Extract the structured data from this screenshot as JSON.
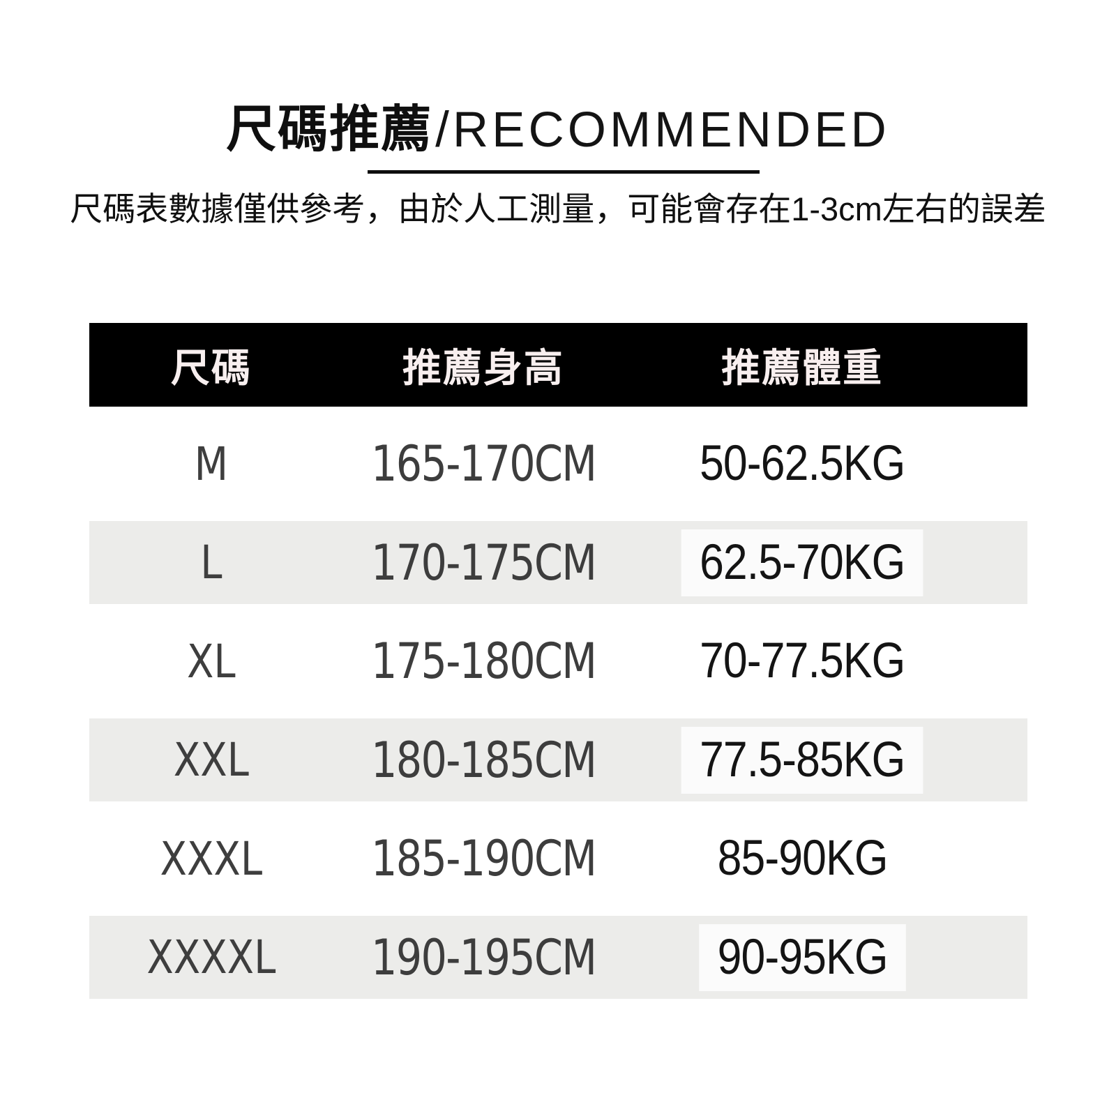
{
  "title": {
    "cjk": "尺碼推薦",
    "latin": "/RECOMMENDED"
  },
  "subtitle": "尺碼表數據僅供參考，由於人工測量，可能會存在1-3cm左右的誤差",
  "table": {
    "headers": [
      "尺碼",
      "推薦身高",
      "推薦體重"
    ],
    "rows": [
      {
        "size": "M",
        "height": "165-170CM",
        "weight": "50-62.5KG"
      },
      {
        "size": "L",
        "height": "170-175CM",
        "weight": "62.5-70KG"
      },
      {
        "size": "XL",
        "height": "175-180CM",
        "weight": "70-77.5KG"
      },
      {
        "size": "XXL",
        "height": "180-185CM",
        "weight": "77.5-85KG"
      },
      {
        "size": "XXXL",
        "height": "185-190CM",
        "weight": "85-90KG"
      },
      {
        "size": "XXXXL",
        "height": "190-195CM",
        "weight": "90-95KG"
      }
    ]
  },
  "colors": {
    "header_bar": "#000000",
    "header_text": "#F8EFEF",
    "shade_row": "#ECECEA",
    "body_text_gray": "#3E3E3E",
    "weight_text": "#141414",
    "page_background": "#FFFFFF"
  }
}
